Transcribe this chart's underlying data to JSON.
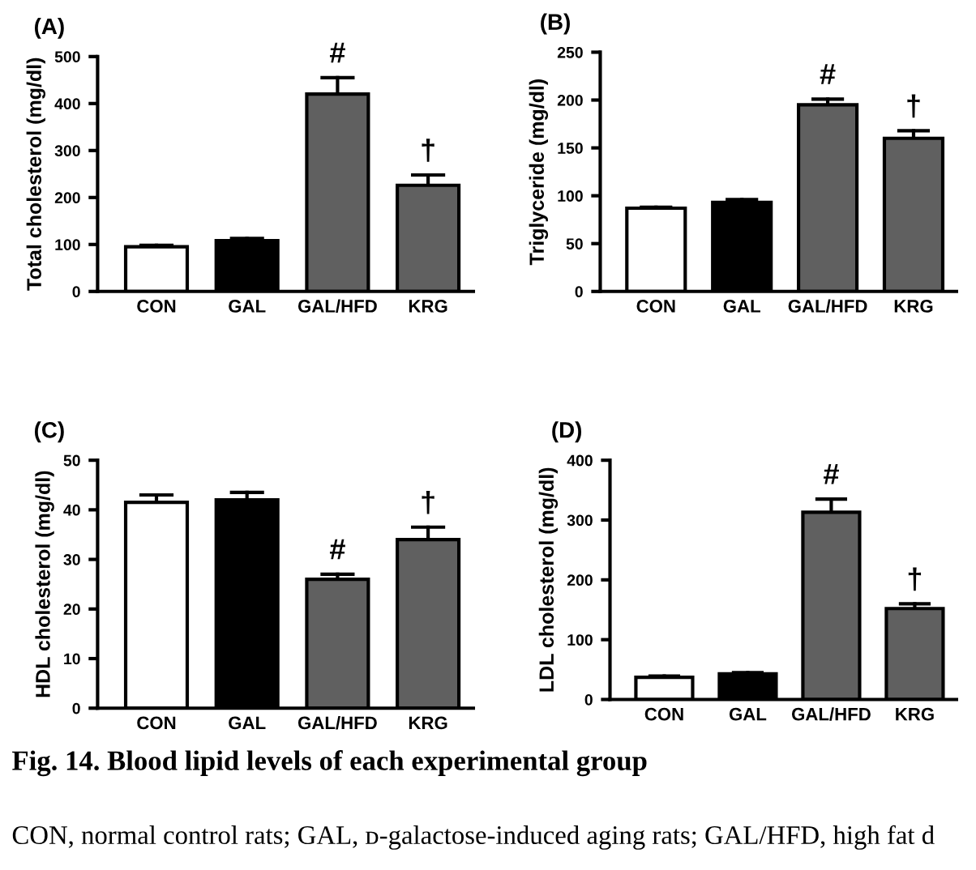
{
  "chart_data": [
    {
      "type": "bar",
      "title": "(A)",
      "ylabel": "Total cholesterol (mg/dl)",
      "categories": [
        "CON",
        "GAL",
        "GAL/HFD",
        "KRG"
      ],
      "values": [
        95,
        108,
        420,
        226
      ],
      "colors": [
        "#ffffff",
        "#000000",
        "#606060",
        "#606060"
      ],
      "errors": [
        [
          95,
          98
        ],
        [
          108,
          113
        ],
        [
          420,
          455
        ],
        [
          226,
          248
        ]
      ],
      "ylim": [
        0,
        500
      ],
      "yticks": [
        0,
        100,
        200,
        300,
        400,
        500
      ],
      "grid": false,
      "annotations": [
        {
          "text": "#",
          "x": "GAL/HFD",
          "y": 455
        },
        {
          "text": "†",
          "x": "KRG",
          "y": 248
        }
      ]
    },
    {
      "type": "bar",
      "title": "(B)",
      "ylabel": "Triglyceride (mg/dl)",
      "categories": [
        "CON",
        "GAL",
        "GAL/HFD",
        "KRG"
      ],
      "values": [
        87,
        93,
        195,
        160
      ],
      "colors": [
        "#ffffff",
        "#000000",
        "#606060",
        "#606060"
      ],
      "errors": [
        [
          87,
          88
        ],
        [
          93,
          96
        ],
        [
          195,
          201
        ],
        [
          160,
          168
        ]
      ],
      "ylim": [
        0,
        250
      ],
      "yticks": [
        0,
        50,
        100,
        150,
        200,
        250
      ],
      "grid": false,
      "annotations": [
        {
          "text": "#",
          "x": "GAL/HFD",
          "y": 201
        },
        {
          "text": "†",
          "x": "KRG",
          "y": 168
        }
      ]
    },
    {
      "type": "bar",
      "title": "(C)",
      "ylabel": "HDL cholesterol (mg/dl)",
      "categories": [
        "CON",
        "GAL",
        "GAL/HFD",
        "KRG"
      ],
      "values": [
        41.5,
        42,
        26,
        34
      ],
      "colors": [
        "#ffffff",
        "#000000",
        "#606060",
        "#606060"
      ],
      "errors": [
        [
          41.5,
          43
        ],
        [
          42,
          43.5
        ],
        [
          26,
          27
        ],
        [
          34,
          36.5
        ]
      ],
      "ylim": [
        0,
        50
      ],
      "yticks": [
        0,
        10,
        20,
        30,
        40,
        50
      ],
      "grid": false,
      "annotations": [
        {
          "text": "#",
          "x": "GAL/HFD",
          "y": 27
        },
        {
          "text": "†",
          "x": "KRG",
          "y": 36.5
        }
      ]
    },
    {
      "type": "bar",
      "title": "(D)",
      "ylabel": "LDL cholesterol (mg/dl)",
      "categories": [
        "CON",
        "GAL",
        "GAL/HFD",
        "KRG"
      ],
      "values": [
        37,
        43,
        313,
        152
      ],
      "colors": [
        "#ffffff",
        "#000000",
        "#606060",
        "#606060"
      ],
      "errors": [
        [
          37,
          39
        ],
        [
          43,
          45
        ],
        [
          313,
          335
        ],
        [
          152,
          160
        ]
      ],
      "ylim": [
        0,
        400
      ],
      "yticks": [
        0,
        100,
        200,
        300,
        400
      ],
      "grid": false,
      "annotations": [
        {
          "text": "#",
          "x": "GAL/HFD",
          "y": 335
        },
        {
          "text": "†",
          "x": "KRG",
          "y": 160
        },
        "Fig. 14. Blood lipid levels of each experimental group",
        "CON, normal control rats; GAL, ᴅ-galactose-induced aging rats; GAL/HFD, high fat d"
      ]
    }
  ]
}
